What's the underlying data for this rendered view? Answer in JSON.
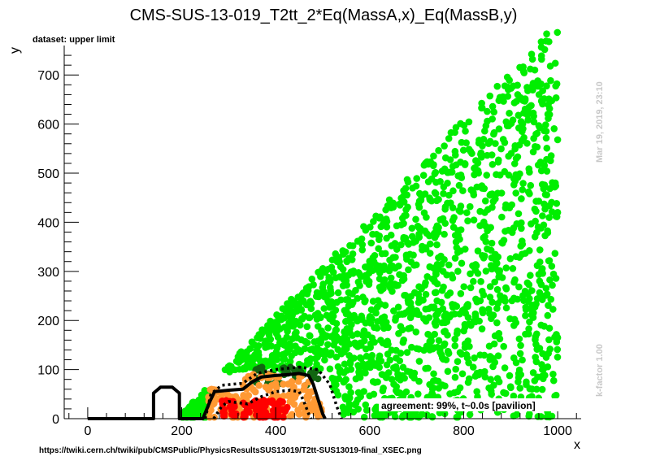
{
  "title": "CMS-SUS-13-019_T2tt_2*Eq(MassA,x)_Eq(MassB,y)",
  "dataset_label": "dataset: upper limit",
  "source_url": "https://twiki.cern.ch/twiki/pub/CMSPublic/PhysicsResultsSUS13019/T2tt-SUS13019-final_XSEC.png",
  "timestamp": "Mar 19, 2019, 23:10",
  "kfactor": "k-factor 1.00",
  "agreement": "agreement: 99%, t~0.0s [pavilion]",
  "colors": {
    "allowed": "#00ee00",
    "excluded_expected_region": "#ff9933",
    "excluded": "#ff0000",
    "dark_band": "#116611",
    "contour": "#000000"
  },
  "chart_data": {
    "type": "scatter",
    "xlabel": "x",
    "ylabel": "y",
    "xlim": [
      -50,
      1050
    ],
    "ylim": [
      0,
      760
    ],
    "xticks": [
      0,
      200,
      400,
      600,
      800,
      1000
    ],
    "yticks": [
      0,
      100,
      200,
      300,
      400,
      500,
      600,
      700
    ],
    "series": [
      {
        "color": "#00ee00",
        "rule": "scattered points filling the triangle between y = 0 and y ≈ x − 200 for x from ≈ 200 to 1000",
        "extremes": [
          [
            995,
            724
          ],
          [
            915,
            660
          ],
          [
            875,
            648
          ],
          [
            1000,
            568
          ],
          [
            995,
            480
          ],
          [
            1000,
            420
          ],
          [
            1000,
            165
          ],
          [
            700,
            220
          ],
          [
            205,
            12
          ]
        ]
      },
      {
        "color": "#ff9933",
        "rule": "points in the band x ≈ 250–500, y ≈ 0–80"
      },
      {
        "color": "#ff0000",
        "rule": "points in the region x ≈ 280–430, y ≈ 0–40"
      },
      {
        "color": "#116611",
        "rule": "points along the upper edge x ≈ 350–500, y ≈ 70–105"
      }
    ],
    "contours": [
      {
        "style": "solid",
        "points": [
          [
            0,
            0
          ],
          [
            140,
            0
          ],
          [
            140,
            52
          ],
          [
            155,
            64
          ],
          [
            180,
            64
          ],
          [
            195,
            52
          ],
          [
            195,
            0
          ],
          [
            245,
            0
          ],
          [
            260,
            35
          ],
          [
            270,
            55
          ],
          [
            300,
            58
          ],
          [
            330,
            60
          ],
          [
            350,
            75
          ],
          [
            370,
            85
          ],
          [
            400,
            88
          ],
          [
            430,
            90
          ],
          [
            450,
            92
          ],
          [
            470,
            88
          ],
          [
            480,
            70
          ],
          [
            490,
            40
          ],
          [
            500,
            10
          ],
          [
            505,
            0
          ]
        ]
      },
      {
        "style": "dashed",
        "points": [
          [
            250,
            0
          ],
          [
            262,
            50
          ],
          [
            285,
            68
          ],
          [
            330,
            72
          ],
          [
            360,
            92
          ],
          [
            400,
            100
          ],
          [
            450,
            105
          ],
          [
            490,
            100
          ],
          [
            515,
            70
          ],
          [
            530,
            25
          ],
          [
            540,
            0
          ]
        ]
      },
      {
        "style": "dashed",
        "points": [
          [
            268,
            0
          ],
          [
            285,
            25
          ],
          [
            300,
            35
          ],
          [
            340,
            30
          ],
          [
            370,
            45
          ],
          [
            400,
            55
          ],
          [
            430,
            58
          ],
          [
            450,
            55
          ],
          [
            460,
            35
          ],
          [
            470,
            10
          ],
          [
            475,
            0
          ]
        ]
      }
    ]
  }
}
